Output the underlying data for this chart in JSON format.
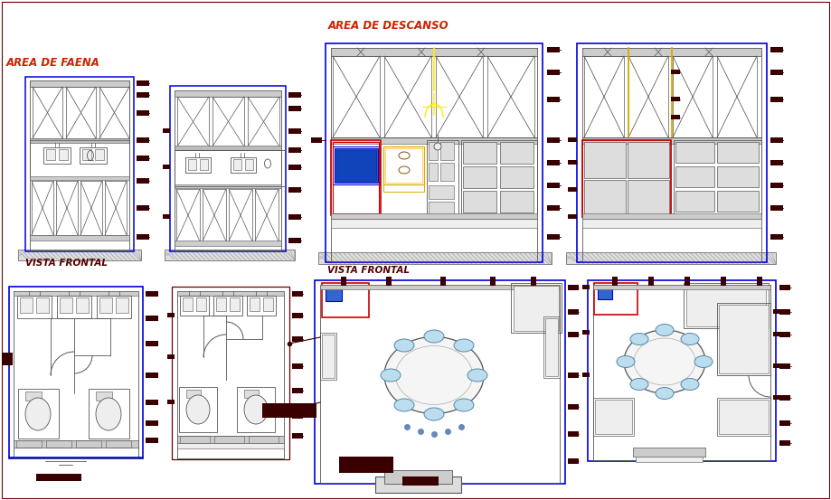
{
  "bg_color": "#ffffff",
  "blue": "#0000dd",
  "red": "#cc0000",
  "dark_red": "#660000",
  "dark_brown": "#3a0000",
  "mid_gray": "#888888",
  "light_gray": "#cccccc",
  "line_gray": "#555555",
  "hatch_gray": "#aaaaaa",
  "yellow": "#ffee00",
  "orange": "#ddaa00",
  "label_color": "#cc2200",
  "dim_color": "#550000",
  "labels": {
    "area_faena": "AREA DE FAENA",
    "area_descanso": "AREA DE DESCANSO",
    "vista_frontal": "VISTA FRONTAL"
  },
  "layout": {
    "fig_width": 9.19,
    "fig_height": 5.53
  }
}
